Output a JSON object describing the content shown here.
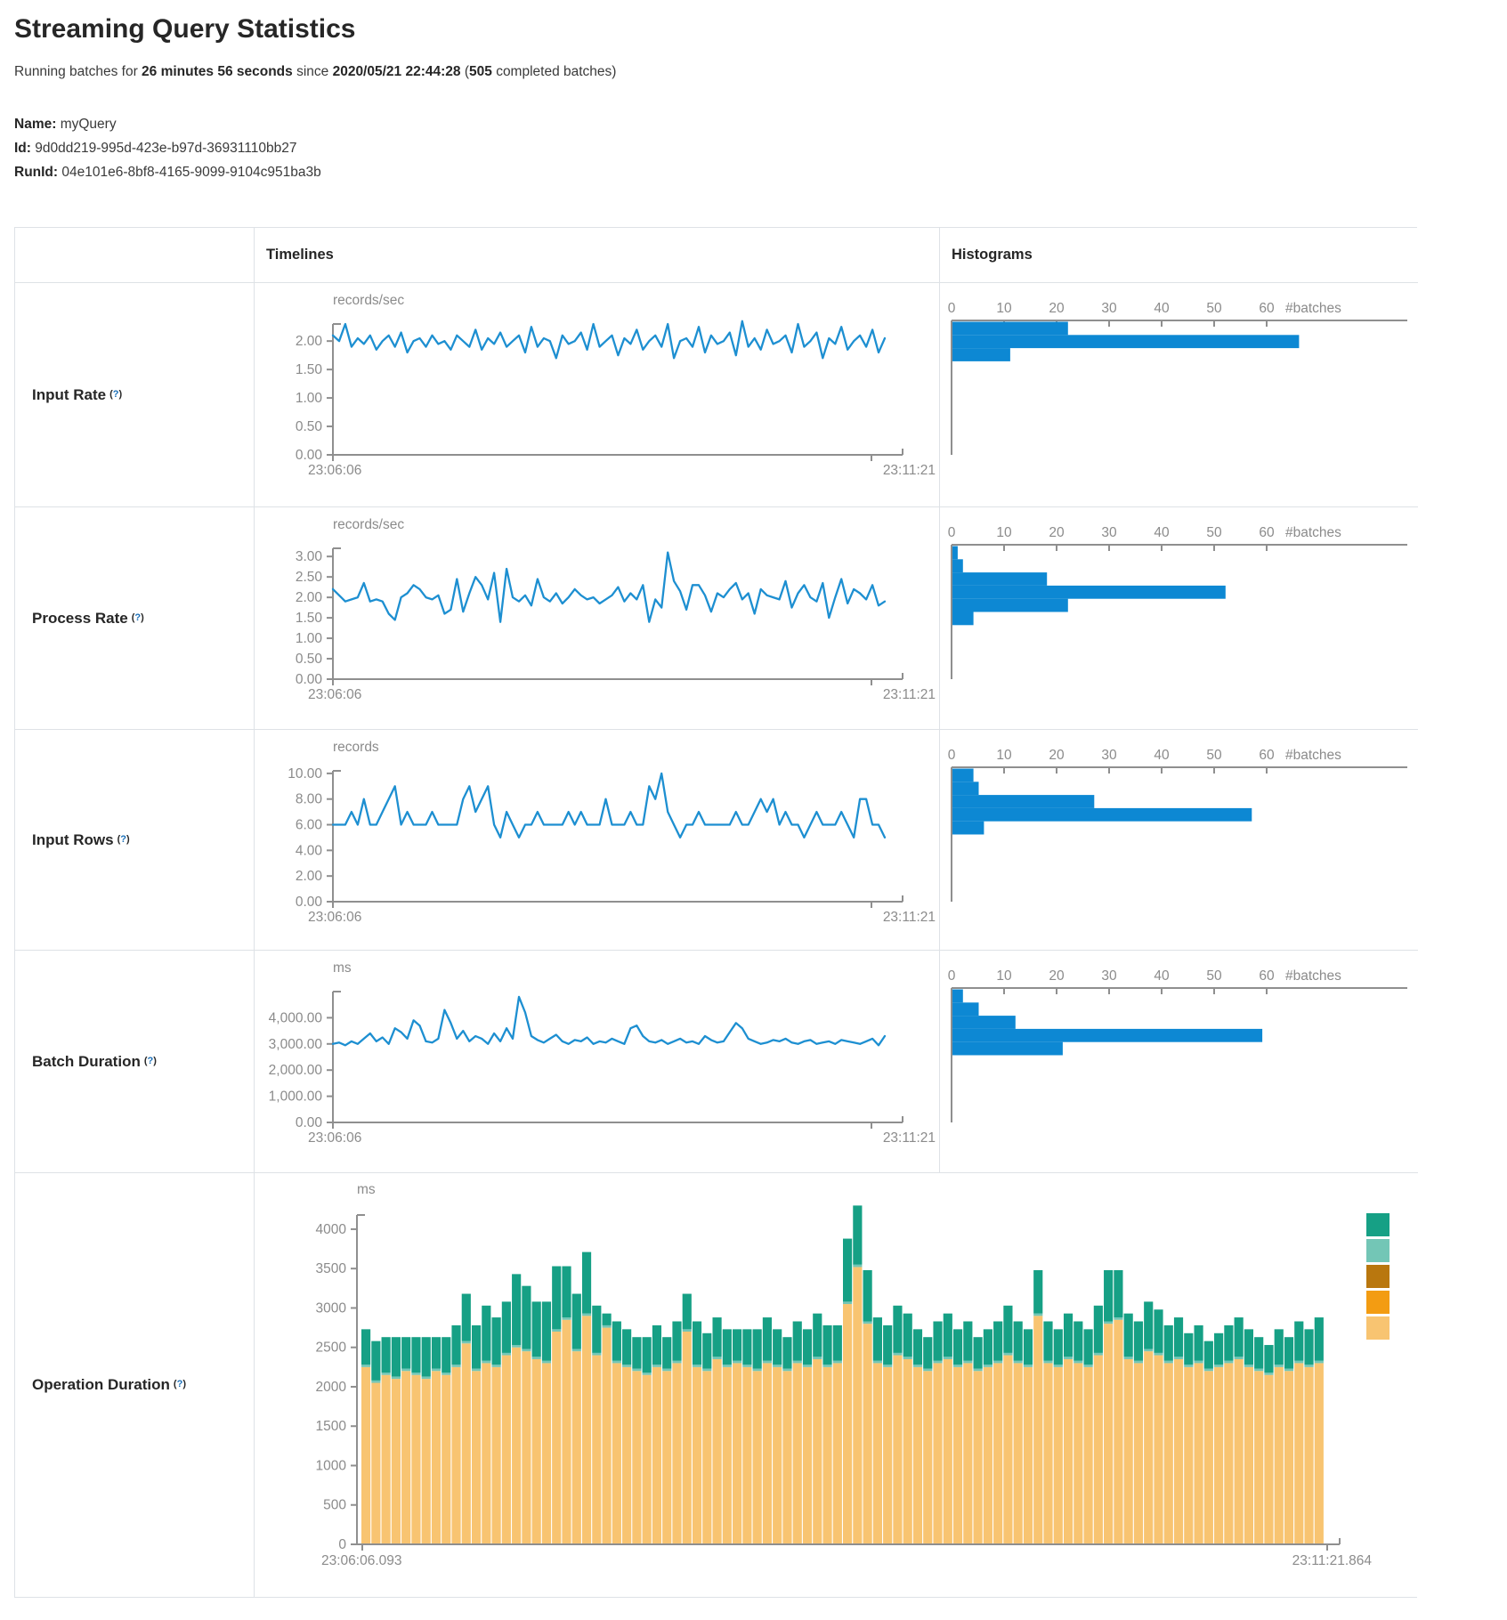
{
  "header": {
    "title": "Streaming Query Statistics",
    "running_prefix": "Running batches for",
    "running_duration": "26 minutes 56 seconds",
    "running_middle": "since",
    "running_start_time": "2020/05/21 22:44:28",
    "running_open": "(",
    "completed_count": "505",
    "running_suffix": "completed batches)",
    "name_label": "Name:",
    "name_value": "myQuery",
    "id_label": "Id:",
    "id_value": "9d0dd219-995d-423e-b97d-36931110bb27",
    "runid_label": "RunId:",
    "runid_value": "04e101e6-8bf8-4165-9099-9104c951ba3b"
  },
  "table": {
    "timelines_header": "Timelines",
    "histograms_header": "Histograms",
    "help_open": "(",
    "help_q": "?",
    "help_close": ")",
    "row_labels": [
      "Input Rate",
      "Process Rate",
      "Input Rows",
      "Batch Duration",
      "Operation Duration"
    ]
  },
  "colors": {
    "line": "#1d8fd1",
    "bar": "#0d88d3",
    "axis": "#8f8f8f",
    "tick_text": "#8b8b8b",
    "stack_green": "#16a085",
    "stack_lightteal": "#73c6b6",
    "stack_tan": "#f8c471"
  },
  "chart_data": [
    {
      "id": "input-rate-timeline",
      "type": "line",
      "unit": "records/sec",
      "x_start_label": "23:06:06",
      "x_end_label": "23:11:21",
      "ymax": 2.3,
      "yticks": [
        0,
        0.5,
        1,
        1.5,
        2
      ],
      "ytick_labels": [
        "0.00",
        "0.50",
        "1.00",
        "1.50",
        "2.00"
      ],
      "values": [
        2.1,
        2.0,
        2.3,
        1.9,
        2.05,
        1.95,
        2.1,
        1.85,
        2.0,
        2.1,
        1.9,
        2.15,
        1.8,
        2.0,
        2.05,
        1.9,
        2.1,
        1.95,
        2.0,
        1.85,
        2.1,
        2.0,
        1.9,
        2.2,
        1.85,
        2.05,
        1.95,
        2.15,
        1.9,
        2.0,
        2.1,
        1.8,
        2.25,
        1.9,
        2.05,
        2.0,
        1.7,
        2.1,
        1.95,
        2.0,
        2.15,
        1.85,
        2.3,
        1.9,
        2.0,
        2.1,
        1.75,
        2.05,
        1.95,
        2.2,
        1.85,
        2.0,
        2.1,
        1.9,
        2.3,
        1.7,
        2.0,
        2.05,
        1.9,
        2.25,
        1.8,
        2.1,
        1.95,
        2.0,
        2.15,
        1.75,
        2.35,
        1.9,
        2.05,
        1.85,
        2.2,
        1.95,
        2.0,
        2.1,
        1.8,
        2.3,
        1.9,
        2.0,
        2.15,
        1.7,
        2.05,
        1.95,
        2.25,
        1.85,
        2.0,
        2.1,
        1.9,
        2.2,
        1.8,
        2.05
      ]
    },
    {
      "id": "input-rate-histogram",
      "type": "bar",
      "count_label": "#batches",
      "xticks": [
        0,
        10,
        20,
        30,
        40,
        50,
        60
      ],
      "values": [
        22,
        66,
        11
      ]
    },
    {
      "id": "process-rate-timeline",
      "type": "line",
      "unit": "records/sec",
      "x_start_label": "23:06:06",
      "x_end_label": "23:11:21",
      "ymax": 3.2,
      "yticks": [
        0,
        0.5,
        1,
        1.5,
        2,
        2.5,
        3
      ],
      "ytick_labels": [
        "0.00",
        "0.50",
        "1.00",
        "1.50",
        "2.00",
        "2.50",
        "3.00"
      ],
      "values": [
        2.2,
        2.05,
        1.9,
        1.95,
        2.0,
        2.35,
        1.9,
        1.95,
        1.9,
        1.6,
        1.45,
        2.0,
        2.1,
        2.3,
        2.2,
        2.0,
        1.95,
        2.05,
        1.6,
        1.7,
        2.45,
        1.65,
        2.1,
        2.5,
        2.3,
        1.95,
        2.6,
        1.4,
        2.7,
        2.0,
        1.9,
        2.05,
        1.8,
        2.45,
        2.0,
        1.9,
        2.1,
        1.85,
        2.0,
        2.2,
        2.05,
        1.95,
        2.0,
        1.85,
        1.95,
        2.05,
        2.25,
        1.9,
        2.1,
        1.95,
        2.3,
        1.4,
        1.95,
        1.75,
        3.1,
        2.4,
        2.15,
        1.7,
        2.3,
        2.3,
        2.05,
        1.65,
        2.1,
        2.0,
        2.2,
        2.35,
        1.95,
        2.1,
        1.6,
        2.2,
        2.05,
        2.0,
        1.95,
        2.4,
        1.75,
        2.1,
        2.3,
        2.0,
        1.9,
        2.35,
        1.5,
        2.0,
        2.45,
        1.85,
        2.2,
        2.1,
        1.95,
        2.3,
        1.8,
        1.9
      ]
    },
    {
      "id": "process-rate-histogram",
      "type": "bar",
      "count_label": "#batches",
      "xticks": [
        0,
        10,
        20,
        30,
        40,
        50,
        60
      ],
      "values": [
        1,
        2,
        18,
        52,
        22,
        4
      ]
    },
    {
      "id": "input-rows-timeline",
      "type": "line",
      "unit": "records",
      "x_start_label": "23:06:06",
      "x_end_label": "23:11:21",
      "ymax": 10.2,
      "yticks": [
        0,
        2,
        4,
        6,
        8,
        10
      ],
      "ytick_labels": [
        "0.00",
        "2.00",
        "4.00",
        "6.00",
        "8.00",
        "10.00"
      ],
      "values": [
        6,
        6,
        6,
        7,
        6,
        8,
        6,
        6,
        7,
        8,
        9,
        6,
        7,
        6,
        6,
        6,
        7,
        6,
        6,
        6,
        6,
        8,
        9,
        7,
        8,
        9,
        6,
        5,
        7,
        6,
        5,
        6,
        6,
        7,
        6,
        6,
        6,
        6,
        7,
        6,
        7,
        6,
        6,
        6,
        8,
        6,
        6,
        6,
        7,
        6,
        6,
        9,
        8,
        10,
        7,
        6,
        5,
        6,
        6,
        7,
        6,
        6,
        6,
        6,
        6,
        7,
        6,
        6,
        7,
        8,
        7,
        8,
        6,
        7,
        6,
        6,
        5,
        6,
        7,
        6,
        6,
        6,
        7,
        6,
        5,
        8,
        8,
        6,
        6,
        5
      ]
    },
    {
      "id": "input-rows-histogram",
      "type": "bar",
      "count_label": "#batches",
      "xticks": [
        0,
        10,
        20,
        30,
        40,
        50,
        60
      ],
      "values": [
        4,
        5,
        27,
        57,
        6
      ]
    },
    {
      "id": "batch-duration-timeline",
      "type": "line",
      "unit": "ms",
      "x_start_label": "23:06:06",
      "x_end_label": "23:11:21",
      "ymax": 5000,
      "yticks": [
        0,
        1000,
        2000,
        3000,
        4000
      ],
      "ytick_labels": [
        "0.00",
        "1,000.00",
        "2,000.00",
        "3,000.00",
        "4,000.00"
      ],
      "values": [
        3000,
        3050,
        2950,
        3100,
        3000,
        3200,
        3400,
        3100,
        3250,
        3000,
        3600,
        3450,
        3200,
        3900,
        3700,
        3100,
        3050,
        3200,
        4300,
        3800,
        3200,
        3500,
        3100,
        3300,
        3200,
        3000,
        3400,
        3100,
        3600,
        3200,
        4800,
        4200,
        3300,
        3150,
        3050,
        3200,
        3350,
        3100,
        3000,
        3150,
        3100,
        3250,
        3000,
        3100,
        3050,
        3200,
        3100,
        3000,
        3600,
        3700,
        3300,
        3100,
        3050,
        3150,
        3000,
        3100,
        3200,
        3050,
        3100,
        3000,
        3300,
        3150,
        3050,
        3100,
        3450,
        3800,
        3600,
        3200,
        3100,
        3000,
        3050,
        3150,
        3100,
        3200,
        3050,
        3000,
        3100,
        3150,
        3000,
        3050,
        3100,
        3000,
        3150,
        3100,
        3050,
        3000,
        3100,
        3200,
        2950,
        3300
      ]
    },
    {
      "id": "batch-duration-histogram",
      "type": "bar",
      "count_label": "#batches",
      "xticks": [
        0,
        10,
        20,
        30,
        40,
        50,
        60
      ],
      "values": [
        2,
        5,
        12,
        59,
        21
      ]
    },
    {
      "id": "operation-duration-stacked",
      "type": "stacked-bar",
      "unit": "ms",
      "x_start_label": "23:06:06.093",
      "x_end_label": "23:11:21.864",
      "ymax": 4180,
      "yticks": [
        0,
        500,
        1000,
        1500,
        2000,
        2500,
        3000,
        3500,
        4000
      ],
      "ytick_labels": [
        "0",
        "500",
        "1000",
        "1500",
        "2000",
        "2500",
        "3000",
        "3500",
        "4000"
      ],
      "legend_colors": [
        "#16a085",
        "#73c6b6",
        "#b9770e",
        "#f39c12",
        "#f8c471"
      ],
      "series": [
        {
          "name": "bottom-tan",
          "color": "#f8c471",
          "values": [
            2250,
            2050,
            2150,
            2100,
            2200,
            2150,
            2100,
            2200,
            2150,
            2250,
            2550,
            2200,
            2300,
            2250,
            2400,
            2500,
            2450,
            2350,
            2300,
            2700,
            2850,
            2450,
            2900,
            2400,
            2750,
            2300,
            2250,
            2200,
            2150,
            2250,
            2200,
            2300,
            2700,
            2250,
            2200,
            2350,
            2250,
            2300,
            2250,
            2200,
            2300,
            2250,
            2200,
            2300,
            2250,
            2350,
            2250,
            2300,
            3050,
            3520,
            2800,
            2300,
            2250,
            2400,
            2350,
            2250,
            2200,
            2300,
            2350,
            2250,
            2300,
            2200,
            2250,
            2300,
            2400,
            2300,
            2250,
            2900,
            2300,
            2250,
            2350,
            2300,
            2250,
            2400,
            2800,
            2850,
            2350,
            2300,
            2450,
            2400,
            2300,
            2350,
            2250,
            2300,
            2200,
            2250,
            2300,
            2350,
            2250,
            2200,
            2150,
            2250,
            2200,
            2300,
            2250,
            2300
          ]
        },
        {
          "name": "middle-lightteal",
          "color": "#73c6b6",
          "constant": 30,
          "count": 96
        },
        {
          "name": "top-green",
          "color": "#16a085",
          "values": [
            450,
            500,
            450,
            500,
            400,
            450,
            500,
            400,
            450,
            500,
            600,
            550,
            700,
            600,
            650,
            900,
            800,
            700,
            750,
            800,
            650,
            700,
            780,
            600,
            150,
            500,
            450,
            400,
            450,
            500,
            400,
            500,
            450,
            550,
            450,
            500,
            450,
            400,
            450,
            500,
            550,
            450,
            400,
            500,
            450,
            550,
            500,
            450,
            800,
            750,
            650,
            550,
            500,
            600,
            550,
            450,
            400,
            500,
            550,
            450,
            500,
            400,
            450,
            500,
            600,
            500,
            450,
            550,
            500,
            450,
            550,
            500,
            450,
            600,
            650,
            600,
            550,
            500,
            600,
            550,
            450,
            500,
            400,
            450,
            350,
            400,
            450,
            500,
            450,
            400,
            350,
            450,
            400,
            500,
            450,
            550
          ]
        }
      ]
    }
  ]
}
